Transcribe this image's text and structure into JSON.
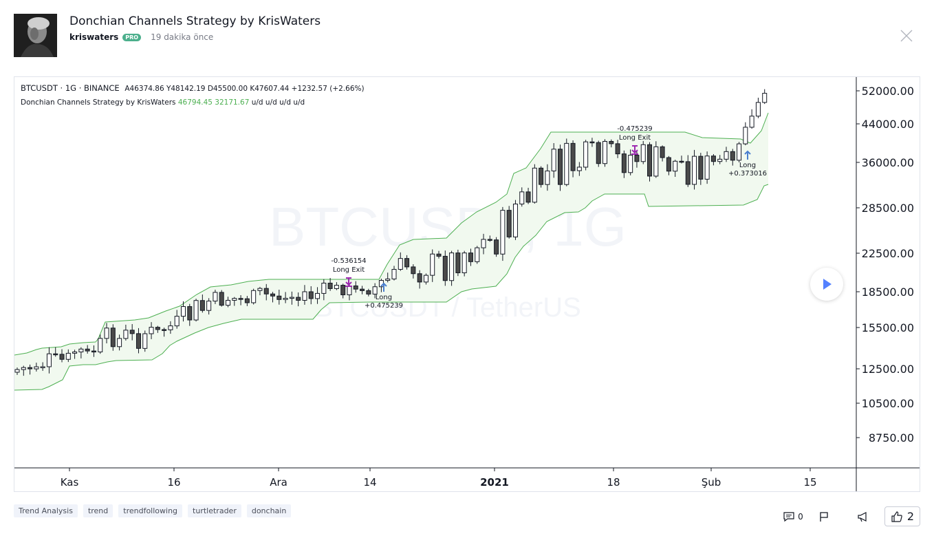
{
  "header": {
    "title": "Donchian Channels Strategy by KrisWaters",
    "author": "kriswaters",
    "badge": "PRO",
    "time": "19 dakika önce"
  },
  "chart_legend": {
    "symbol": "BTCUSDT · 1G · BINANCE",
    "ohlc": "A46374.86  Y48142.19  D45500.00  K47607.44  +1232.57 (+2.66%)",
    "indicator_name": "Donchian Channels Strategy by KrisWaters",
    "indicator_values": "46794.45  32171.67",
    "indicator_flags": "u/d  u/d  u/d  u/d"
  },
  "watermark": {
    "line1": "BTCUSDT, 1G",
    "line2": "BTCUSDT / TetherUS"
  },
  "colors": {
    "channel_line": "#4caf50",
    "channel_fill": "#f1f9ef",
    "long_signal": "#4a7fcf",
    "exit_signal": "#9c27b0"
  },
  "chart_data": {
    "type": "candlestick",
    "price_axis_labels": [
      "52000.00",
      "44000.00",
      "36000.00",
      "28500.00",
      "22500.00",
      "18500.00",
      "15500.00",
      "12500.00",
      "10500.00",
      "8750.00"
    ],
    "time_axis_labels": [
      "Kas",
      "16",
      "Ara",
      "14",
      "2021",
      "18",
      "Şub",
      "15"
    ],
    "signals": [
      {
        "type": "long_exit",
        "label": "Long Exit",
        "value": "-0.536154"
      },
      {
        "type": "long",
        "label": "Long",
        "value": "+0.475239"
      },
      {
        "type": "long_exit",
        "label": "Long Exit",
        "value": "-0.475239"
      },
      {
        "type": "long",
        "label": "Long",
        "value": "+0.373016"
      }
    ]
  },
  "tags": [
    "Trend Analysis",
    "trend",
    "trendfollowing",
    "turtletrader",
    "donchain"
  ],
  "actions": {
    "comments": "0",
    "likes": "2"
  }
}
